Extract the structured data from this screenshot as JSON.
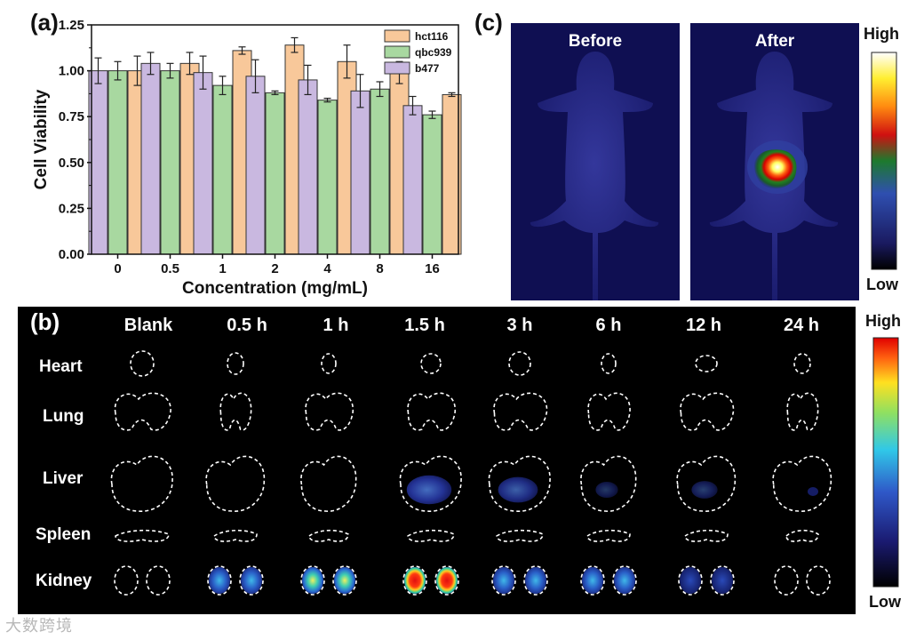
{
  "panel_labels": {
    "a": "(a)",
    "b": "(b)",
    "c": "(c)"
  },
  "chart_data": {
    "type": "bar",
    "title": "",
    "xlabel": "Concentration (mg/mL)",
    "ylabel": "Cell Viability",
    "categories": [
      "0",
      "0.5",
      "1",
      "2",
      "4",
      "8",
      "16"
    ],
    "ylim": [
      0,
      1.25
    ],
    "yticks": [
      "0.00",
      "0.25",
      "0.50",
      "0.75",
      "1.00",
      "1.25"
    ],
    "legend_position": "top-right",
    "series": [
      {
        "name": "b477",
        "color": "#c9b8e0",
        "values": [
          1.0,
          1.04,
          0.99,
          0.97,
          0.95,
          0.89,
          0.81
        ],
        "errors": [
          0.07,
          0.06,
          0.09,
          0.09,
          0.08,
          0.09,
          0.05
        ]
      },
      {
        "name": "qbc939",
        "color": "#a8d8a0",
        "values": [
          1.0,
          1.0,
          0.92,
          0.88,
          0.84,
          0.9,
          0.76
        ],
        "errors": [
          0.05,
          0.04,
          0.05,
          0.01,
          0.01,
          0.04,
          0.02
        ]
      },
      {
        "name": "hct116",
        "color": "#f8c89a",
        "values": [
          1.0,
          1.04,
          1.11,
          1.14,
          1.05,
          0.99,
          0.87
        ],
        "errors": [
          0.08,
          0.06,
          0.02,
          0.04,
          0.09,
          0.06,
          0.01
        ]
      }
    ]
  },
  "panel_c": {
    "before_label": "Before",
    "after_label": "After",
    "colorbar_high": "High",
    "colorbar_low": "Low"
  },
  "panel_b": {
    "time_points": [
      "Blank",
      "0.5 h",
      "1 h",
      "1.5 h",
      "3 h",
      "6 h",
      "12 h",
      "24 h"
    ],
    "organs": [
      "Heart",
      "Lung",
      "Liver",
      "Spleen",
      "Kidney"
    ],
    "liver_signal": [
      0,
      0,
      0,
      0.55,
      0.45,
      0.15,
      0.2,
      0.05
    ],
    "kidney_signal": [
      0,
      0.5,
      0.75,
      1.0,
      0.55,
      0.45,
      0.3,
      0
    ],
    "colorbar_high": "High",
    "colorbar_low": "Low"
  },
  "colors": {
    "fluorescence_low": "#000033",
    "fluorescence_high": "#ff0000",
    "panel_background": "#000000"
  },
  "watermark": "大数跨境"
}
